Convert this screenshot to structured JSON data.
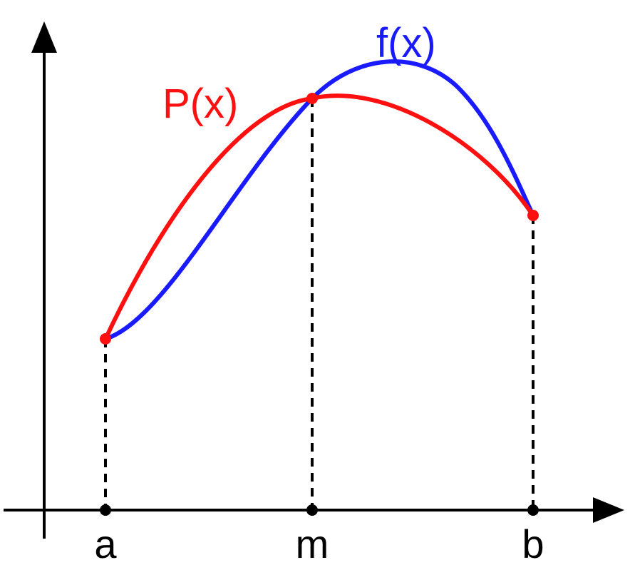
{
  "curve_labels": {
    "f": "f(x)",
    "p": "P(x)"
  },
  "points": {
    "a": "a",
    "m": "m",
    "b": "b"
  }
}
